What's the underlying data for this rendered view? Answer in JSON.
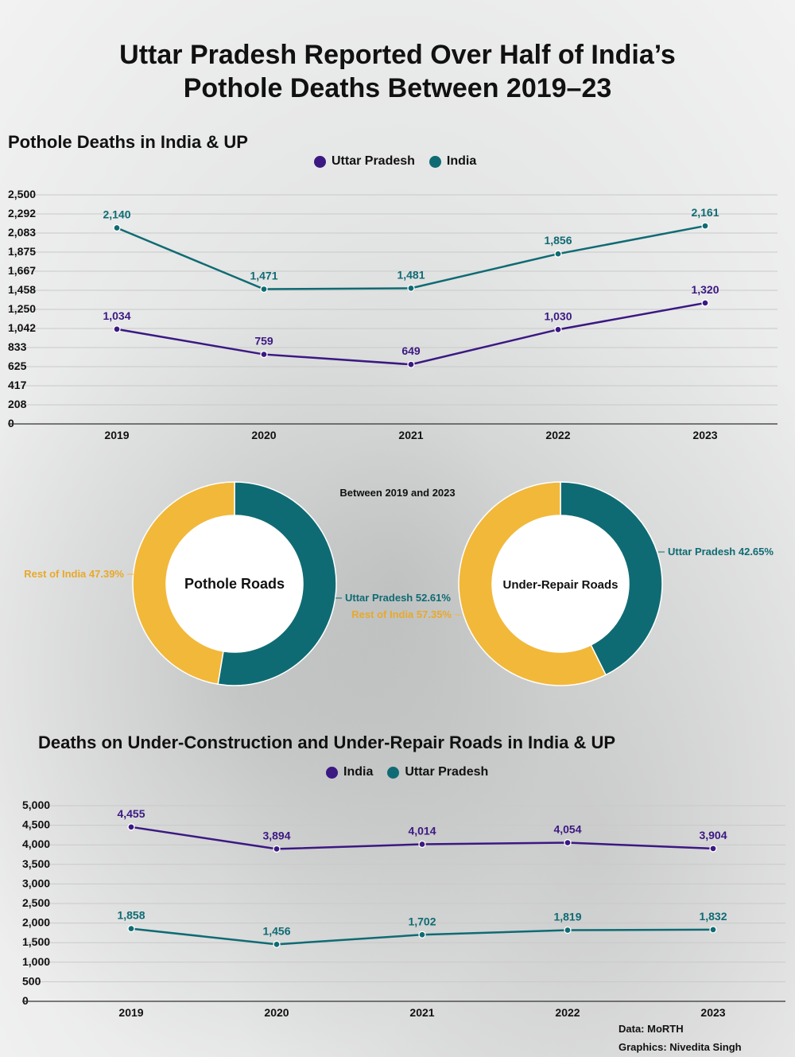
{
  "title": "Uttar Pradesh Reported Over Half of India’s\nPothole Deaths Between 2019–23",
  "colors": {
    "up_purple": "#3b1882",
    "india_teal": "#0f6b73",
    "rest_yellow": "#f2b83a"
  },
  "chart_data": [
    {
      "type": "line",
      "title": "Pothole Deaths in India & UP",
      "categories": [
        "2019",
        "2020",
        "2021",
        "2022",
        "2023"
      ],
      "yticks": [
        "0",
        "208",
        "417",
        "625",
        "833",
        "1,042",
        "1,250",
        "1,458",
        "1,667",
        "1,875",
        "2,083",
        "2,292",
        "2,500"
      ],
      "ylim": [
        0,
        2500
      ],
      "grid": true,
      "legend": "top-center",
      "series": [
        {
          "name": "Uttar Pradesh",
          "color": "#3b1882",
          "values": [
            1034,
            759,
            649,
            1030,
            1320
          ],
          "labels": [
            "1,034",
            "759",
            "649",
            "1,030",
            "1,320"
          ]
        },
        {
          "name": "India",
          "color": "#0f6b73",
          "values": [
            2140,
            1471,
            1481,
            1856,
            2161
          ],
          "labels": [
            "2,140",
            "1,471",
            "1,481",
            "1,856",
            "2,161"
          ]
        }
      ]
    },
    {
      "type": "pie",
      "title": "Pothole Roads",
      "slices": [
        {
          "label": "Uttar Pradesh 52.61%",
          "value": 52.61,
          "color": "#0f6b73"
        },
        {
          "label": "Rest of India 47.39%",
          "value": 47.39,
          "color": "#f2b83a"
        }
      ]
    },
    {
      "type": "pie",
      "title": "Under-Repair Roads",
      "slices": [
        {
          "label": "Uttar Pradesh 42.65%",
          "value": 42.65,
          "color": "#0f6b73"
        },
        {
          "label": "Rest of India 57.35%",
          "value": 57.35,
          "color": "#f2b83a"
        }
      ]
    },
    {
      "type": "line",
      "title": "Deaths on Under-Construction and Under-Repair Roads in India & UP",
      "categories": [
        "2019",
        "2020",
        "2021",
        "2022",
        "2023"
      ],
      "yticks": [
        "0",
        "500",
        "1,000",
        "1,500",
        "2,000",
        "2,500",
        "3,000",
        "3,500",
        "4,000",
        "4,500",
        "5,000"
      ],
      "ylim": [
        0,
        5000
      ],
      "grid": true,
      "legend": "top-center",
      "series": [
        {
          "name": "India",
          "color": "#3b1882",
          "values": [
            4455,
            3894,
            4014,
            4054,
            3904
          ],
          "labels": [
            "4,455",
            "3,894",
            "4,014",
            "4,054",
            "3,904"
          ]
        },
        {
          "name": "Uttar Pradesh",
          "color": "#0f6b73",
          "values": [
            1858,
            1456,
            1702,
            1819,
            1832
          ],
          "labels": [
            "1,858",
            "1,456",
            "1,702",
            "1,819",
            "1,832"
          ]
        }
      ]
    }
  ],
  "donut_caption": "Between 2019 and 2023",
  "source": "Data: MoRTH",
  "credit": "Graphics: Nivedita Singh"
}
